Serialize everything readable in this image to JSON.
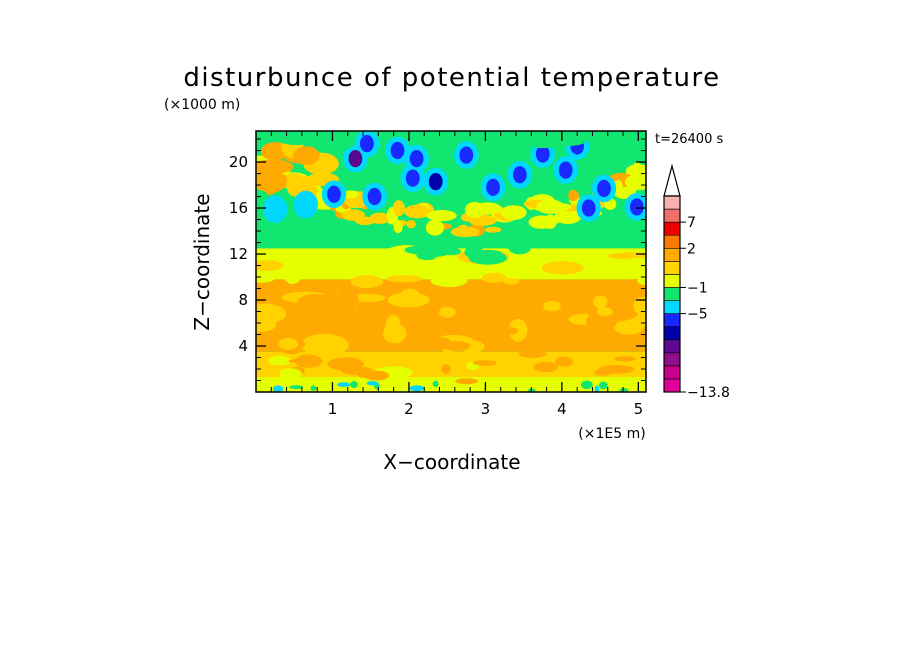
{
  "chart_data": {
    "type": "heatmap",
    "title": "disturbunce of potential temperature",
    "y_unit_label": "(×1000 m)",
    "x_unit_label": "(×1E5 m)",
    "xlabel": "X−coordinate",
    "ylabel": "Z−coordinate",
    "time_label": "t=26400 s",
    "xlim": [
      0,
      5.1
    ],
    "ylim": [
      0,
      22.7
    ],
    "x_ticks": [
      1,
      2,
      3,
      4,
      5
    ],
    "y_ticks": [
      4,
      8,
      12,
      16,
      20
    ],
    "x_tick_labels": [
      "1",
      "2",
      "3",
      "4",
      "5"
    ],
    "y_tick_labels": [
      "4",
      "8",
      "12",
      "16",
      "20"
    ],
    "colorbar": {
      "labels": [
        {
          "value": 7,
          "text": "7"
        },
        {
          "value": 2,
          "text": "2"
        },
        {
          "value": -1,
          "text": "−1"
        },
        {
          "value": -5,
          "text": "−5"
        },
        {
          "value": -13.8,
          "text": "−13.8"
        }
      ],
      "levels": [
        {
          "color": "#e2009a"
        },
        {
          "color": "#c8008c"
        },
        {
          "color": "#90108a"
        },
        {
          "color": "#5a0890"
        },
        {
          "color": "#0000aa"
        },
        {
          "color": "#1828ff"
        },
        {
          "color": "#00d8ff"
        },
        {
          "color": "#10e670"
        },
        {
          "color": "#e6ff00"
        },
        {
          "color": "#ffd200"
        },
        {
          "color": "#ffaa00"
        },
        {
          "color": "#ff7a00"
        },
        {
          "color": "#f00000"
        },
        {
          "color": "#f07070"
        },
        {
          "color": "#f6b0b0"
        }
      ],
      "triangle_color": "#ffffff"
    },
    "field": {
      "bands": [
        {
          "z": [
            0,
            1.3
          ],
          "value": "yellow"
        },
        {
          "z": [
            1.3,
            3.5
          ],
          "value": "gold"
        },
        {
          "z": [
            3.5,
            9.8
          ],
          "value": "orange"
        },
        {
          "z": [
            9.8,
            12.5
          ],
          "value": "yellow"
        },
        {
          "z": [
            12.5,
            15.5
          ],
          "value": "green"
        },
        {
          "z": [
            15.5,
            22.7
          ],
          "value": "mixed"
        }
      ]
    }
  }
}
